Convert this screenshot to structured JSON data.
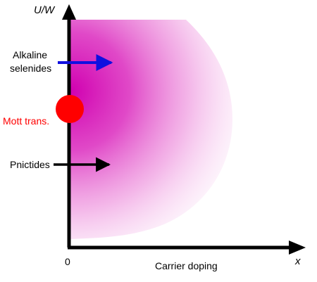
{
  "axes": {
    "y_label": "U/W",
    "x_label": "x",
    "x_title": "Carrier doping",
    "origin_label": "0"
  },
  "annotations": {
    "alkaline_line1": "Alkaline",
    "alkaline_line2": "selenides",
    "mott": "Mott trans.",
    "pnictides": "Pnictides"
  },
  "colors": {
    "region": "#d000b0",
    "alkaline_arrow": "#1010e0",
    "mott": "#ff0000",
    "pnictides_arrow": "#000000",
    "axis": "#000000"
  }
}
